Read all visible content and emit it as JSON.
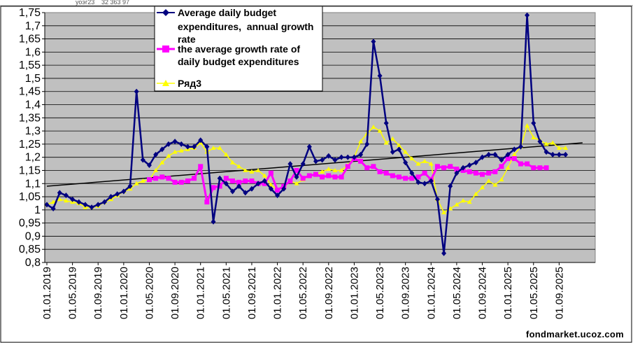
{
  "sheet": {
    "cells": [
      "уоэг23",
      "32 363 97"
    ]
  },
  "watermark": "fondmarket.ucoz.com",
  "chart_data": {
    "type": "line",
    "title": "",
    "xlabel": "",
    "ylabel": "",
    "ylim": [
      0.8,
      1.75
    ],
    "y_step": 0.05,
    "y_ticks": [
      "1,75",
      "1,7",
      "1,65",
      "1,6",
      "1,55",
      "1,5",
      "1,45",
      "1,4",
      "1,35",
      "1,3",
      "1,25",
      "1,2",
      "1,15",
      "1,1",
      "1,05",
      "1",
      "0,95",
      "0,9",
      "0,85",
      "0,8"
    ],
    "x_tick_labels": [
      "01.01.2019",
      "01.05.2019",
      "01.09.2019",
      "01.01.2020",
      "01.05.2020",
      "01.09.2020",
      "01.01.2021",
      "01.05.2021",
      "01.09.2021",
      "01.01.2022",
      "01.05.2022",
      "01.09.2022",
      "01.01.2023",
      "01.05.2023",
      "01.09.2023",
      "01.01.2024",
      "01.05.2024",
      "01.09.2024",
      "01.01.2025",
      "01.05.2025",
      "01.09.2025"
    ],
    "grid": true,
    "plot_background": "#c0c0c0",
    "legend_position": "top-center",
    "series": [
      {
        "name": "Average daily budget expenditures,  annual growth rate",
        "color": "#000080",
        "marker": "diamond",
        "start_month": "2019-01",
        "values": [
          1.02,
          1.005,
          1.065,
          1.055,
          1.04,
          1.03,
          1.02,
          1.01,
          1.02,
          1.03,
          1.05,
          1.06,
          1.07,
          1.09,
          1.45,
          1.19,
          1.17,
          1.21,
          1.23,
          1.25,
          1.26,
          1.25,
          1.24,
          1.24,
          1.265,
          1.24,
          0.955,
          1.12,
          1.1,
          1.07,
          1.09,
          1.065,
          1.08,
          1.1,
          1.11,
          1.08,
          1.055,
          1.08,
          1.175,
          1.125,
          1.175,
          1.24,
          1.185,
          1.19,
          1.205,
          1.19,
          1.2,
          1.2,
          1.2,
          1.21,
          1.25,
          1.64,
          1.51,
          1.33,
          1.22,
          1.23,
          1.18,
          1.14,
          1.105,
          1.1,
          1.11,
          1.04,
          0.835,
          1.09,
          1.14,
          1.16,
          1.17,
          1.18,
          1.2,
          1.21,
          1.21,
          1.19,
          1.21,
          1.23,
          1.24,
          1.74,
          1.33,
          1.26,
          1.22,
          1.21,
          1.21,
          1.21
        ]
      },
      {
        "name": "the average growth rate of daily budget expenditures",
        "color": "#ff00ff",
        "marker": "square",
        "start_month": "2020-05",
        "values": [
          1.115,
          1.12,
          1.125,
          1.12,
          1.105,
          1.105,
          1.11,
          1.12,
          1.165,
          1.03,
          1.085,
          1.09,
          1.12,
          1.11,
          1.105,
          1.11,
          1.11,
          1.1,
          1.1,
          1.14,
          1.075,
          1.09,
          1.11,
          1.15,
          1.12,
          1.13,
          1.135,
          1.125,
          1.13,
          1.125,
          1.125,
          1.165,
          1.195,
          1.185,
          1.16,
          1.165,
          1.145,
          1.14,
          1.13,
          1.125,
          1.12,
          1.12,
          1.125,
          1.14,
          1.115,
          1.165,
          1.16,
          1.165,
          1.155,
          1.15,
          1.145,
          1.14,
          1.135,
          1.14,
          1.145,
          1.165,
          1.195,
          1.195,
          1.175,
          1.175,
          1.16,
          1.16,
          1.16
        ]
      },
      {
        "name": "Ряд3",
        "color": "#ffff00",
        "marker": "triangle",
        "start_month": "2019-01",
        "values": [
          1.02,
          1.03,
          1.04,
          1.035,
          1.03,
          1.025,
          1.01,
          1.01,
          1.015,
          1.03,
          1.04,
          1.055,
          1.07,
          1.08,
          1.1,
          1.11,
          1.115,
          1.15,
          1.18,
          1.205,
          1.22,
          1.225,
          1.23,
          1.235,
          1.255,
          1.22,
          1.235,
          1.235,
          1.21,
          1.18,
          1.165,
          1.15,
          1.145,
          1.15,
          1.13,
          1.095,
          1.075,
          1.085,
          1.11,
          1.1,
          1.115,
          1.13,
          1.135,
          1.145,
          1.155,
          1.15,
          1.15,
          1.17,
          1.2,
          1.26,
          1.29,
          1.315,
          1.3,
          1.255,
          1.27,
          1.245,
          1.22,
          1.195,
          1.175,
          1.185,
          1.175,
          1.04,
          0.99,
          1.005,
          1.02,
          1.035,
          1.03,
          1.06,
          1.085,
          1.11,
          1.095,
          1.115,
          1.16,
          1.21,
          1.24,
          1.32,
          1.275,
          1.265,
          1.25,
          1.255,
          1.235,
          1.235
        ]
      },
      {
        "name": "",
        "type": "trendline",
        "color": "#000000",
        "start_month": "2019-01",
        "end_month": "2025-12",
        "values": [
          1.09,
          1.255
        ]
      }
    ]
  }
}
